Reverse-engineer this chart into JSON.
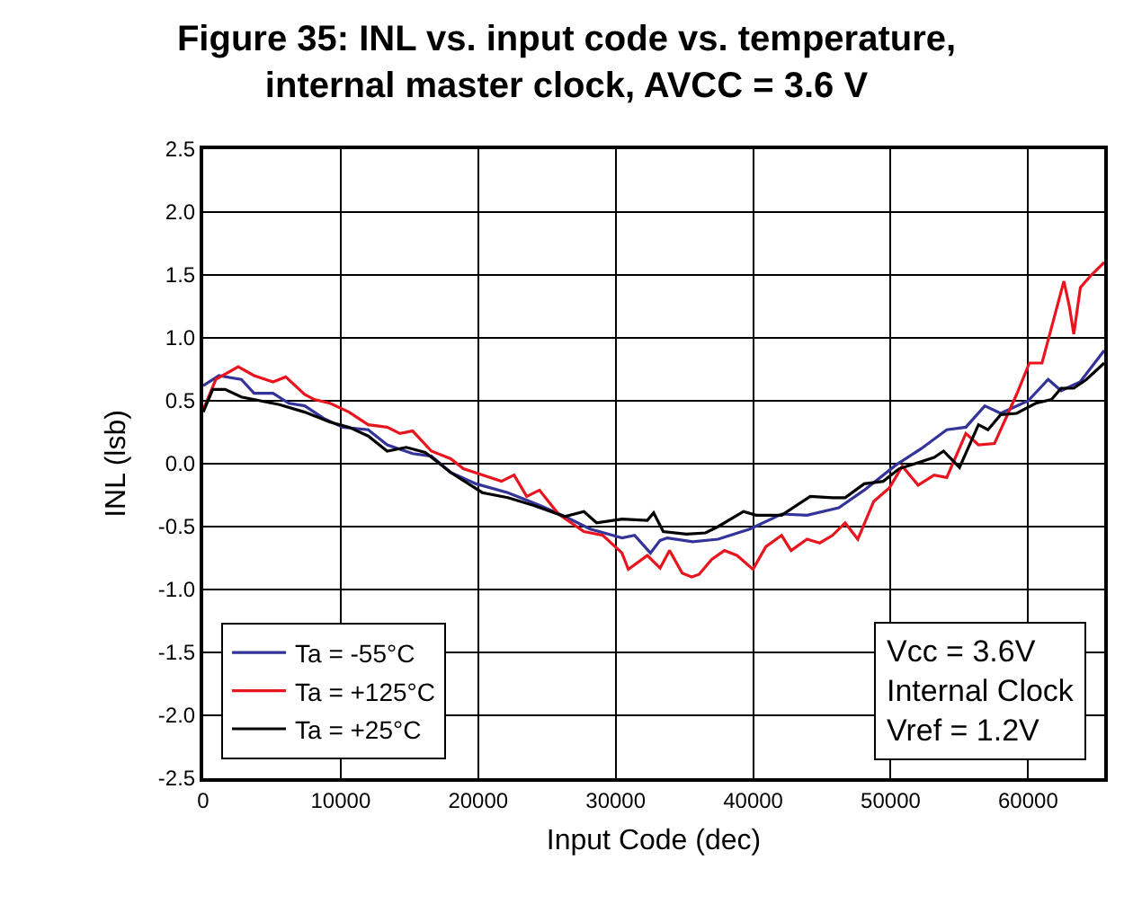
{
  "chart_data": {
    "type": "line",
    "title": "Figure 35: INL vs. input code vs. temperature,\ninternal master clock, AVCC = 3.6 V",
    "xlabel": "Input Code (dec)",
    "ylabel": "INL (lsb)",
    "xlim": [
      0,
      65535
    ],
    "xticks": [
      0,
      10000,
      20000,
      30000,
      40000,
      50000,
      60000
    ],
    "ylim": [
      -2.5,
      2.5
    ],
    "yticks": [
      -2.5,
      {
        "value": -2,
        "label": "-2.0"
      },
      -1.5,
      {
        "value": -1,
        "label": "-1.0"
      },
      -0.5,
      {
        "value": 0,
        "label": "0.0"
      },
      0.5,
      {
        "value": 1,
        "label": "1.0"
      },
      1.5,
      {
        "value": 2,
        "label": "2.0"
      },
      2.5
    ],
    "grid": true,
    "legend": "bottom left",
    "marker": "none",
    "line_style": "solid",
    "annotations": [
      "Vcc = 3.6V\nInternal Clock\nVref = 1.2V"
    ],
    "series": [
      {
        "name": "Ta = -55°C",
        "color": "#333399",
        "x": [
          0,
          1150,
          2770,
          3700,
          5080,
          6230,
          7380,
          8770,
          10150,
          12000,
          13380,
          15230,
          16600,
          18000,
          19840,
          22150,
          24460,
          26300,
          28150,
          30460,
          31380,
          32530,
          33230,
          33750,
          35600,
          37450,
          39760,
          42070,
          43920,
          46230,
          48080,
          50390,
          52230,
          54080,
          55470,
          56850,
          58000,
          60000,
          61460,
          62400,
          63780,
          65535
        ],
        "values": [
          0.62,
          0.7,
          0.67,
          0.56,
          0.56,
          0.48,
          0.46,
          0.36,
          0.29,
          0.27,
          0.15,
          0.08,
          0.06,
          -0.07,
          -0.16,
          -0.23,
          -0.33,
          -0.42,
          -0.52,
          -0.59,
          -0.57,
          -0.71,
          -0.61,
          -0.59,
          -0.62,
          -0.6,
          -0.52,
          -0.4,
          -0.41,
          -0.35,
          -0.21,
          -0.01,
          0.12,
          0.27,
          0.29,
          0.46,
          0.4,
          0.5,
          0.67,
          0.58,
          0.65,
          0.9
        ]
      },
      {
        "name": "Ta = +125°C",
        "color": "#e8141e",
        "x": [
          0,
          920,
          2540,
          3700,
          5080,
          6000,
          7380,
          8080,
          9230,
          10610,
          12000,
          13380,
          14300,
          15230,
          16600,
          18000,
          18920,
          20300,
          21690,
          22610,
          23530,
          24460,
          25840,
          27690,
          29070,
          30460,
          30920,
          32300,
          33230,
          33920,
          34840,
          35530,
          36060,
          36990,
          37910,
          38840,
          39990,
          40920,
          42070,
          42760,
          43920,
          44840,
          45770,
          46690,
          47610,
          48770,
          49920,
          50850,
          52000,
          53160,
          54080,
          55470,
          56390,
          57550,
          59160,
          60090,
          61010,
          62160,
          62600,
          63000,
          63320,
          63800,
          64600,
          65535
        ],
        "values": [
          0.43,
          0.67,
          0.77,
          0.7,
          0.65,
          0.69,
          0.55,
          0.51,
          0.48,
          0.41,
          0.31,
          0.29,
          0.24,
          0.26,
          0.1,
          0.04,
          -0.04,
          -0.09,
          -0.14,
          -0.09,
          -0.26,
          -0.21,
          -0.4,
          -0.54,
          -0.57,
          -0.71,
          -0.84,
          -0.73,
          -0.83,
          -0.69,
          -0.87,
          -0.9,
          -0.88,
          -0.76,
          -0.69,
          -0.73,
          -0.84,
          -0.66,
          -0.57,
          -0.69,
          -0.6,
          -0.63,
          -0.57,
          -0.47,
          -0.6,
          -0.3,
          -0.19,
          -0.02,
          -0.17,
          -0.09,
          -0.11,
          0.24,
          0.15,
          0.16,
          0.55,
          0.8,
          0.8,
          1.27,
          1.45,
          1.25,
          1.03,
          1.4,
          1.5,
          1.6
        ]
      },
      {
        "name": "Ta = +25°C",
        "color": "#000000",
        "x": [
          0,
          690,
          1600,
          2770,
          4150,
          5540,
          7380,
          9230,
          10610,
          12000,
          13380,
          14770,
          16150,
          18000,
          20300,
          22150,
          24000,
          26300,
          27690,
          28610,
          30460,
          32300,
          32760,
          33460,
          35140,
          36530,
          37450,
          39300,
          40220,
          42070,
          44150,
          45770,
          46690,
          48080,
          49460,
          50620,
          51770,
          53160,
          53850,
          55010,
          56390,
          57080,
          58010,
          59160,
          60550,
          61700,
          62400,
          63320,
          64240,
          65535
        ],
        "values": [
          0.41,
          0.59,
          0.59,
          0.53,
          0.5,
          0.47,
          0.41,
          0.33,
          0.29,
          0.22,
          0.1,
          0.13,
          0.09,
          -0.07,
          -0.23,
          -0.27,
          -0.33,
          -0.42,
          -0.38,
          -0.47,
          -0.44,
          -0.45,
          -0.39,
          -0.54,
          -0.56,
          -0.55,
          -0.5,
          -0.38,
          -0.41,
          -0.41,
          -0.26,
          -0.27,
          -0.27,
          -0.16,
          -0.14,
          -0.04,
          0,
          0.05,
          0.1,
          -0.03,
          0.31,
          0.27,
          0.39,
          0.4,
          0.48,
          0.51,
          0.6,
          0.6,
          0.67,
          0.8
        ]
      }
    ]
  }
}
